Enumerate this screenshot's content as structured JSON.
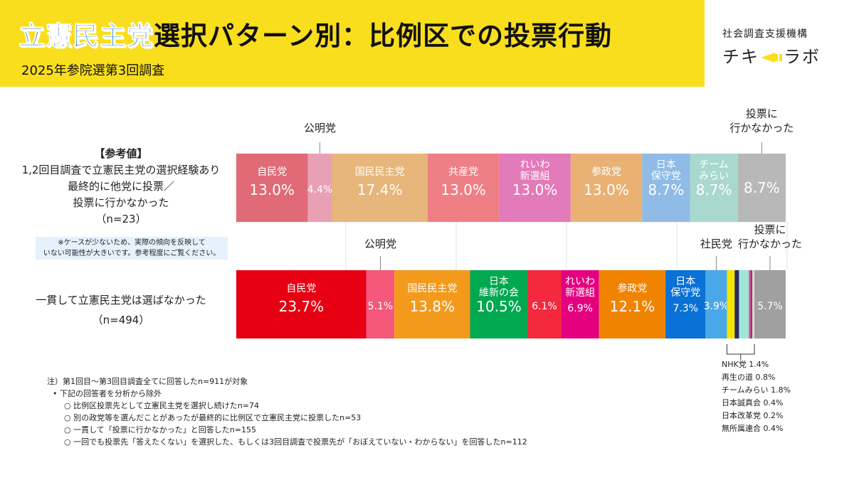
{
  "header": {
    "title_highlight": "立憲民主党",
    "title_rest": "選択パターン別：比例区での投票行動",
    "subtitle": "2025年参院選第3回調査"
  },
  "org": {
    "name": "社会調査支援機構",
    "logo_left": "チキ",
    "logo_right": "ラボ"
  },
  "rows": {
    "row1": {
      "tag": "【参考値】",
      "line1": "1,2回目調査で立憲民主党の選択経験あり",
      "line2": "最終的に他党に投票／",
      "line3": "投票に行かなかった",
      "n": "（n=23）",
      "note_line1": "※ケースが少ないため、実際の傾向を反映して",
      "note_line2": "いない可能性が大きいです。参考程度にご覧ください。"
    },
    "row2": {
      "line1": "一貫して立憲民主党は選ばなかった",
      "n": "（n=494）"
    }
  },
  "chart_data": {
    "type": "bar",
    "orientation": "horizontal-stacked-100",
    "categories": [
      "1,2回目調査で立憲民主党の選択経験あり 最終的に他党に投票／投票に行かなかった",
      "一貫して立憲民主党は選ばなかった"
    ],
    "bars": [
      {
        "segments": [
          {
            "name": "自民党",
            "label": "自民党",
            "value": 13.0,
            "value_label": "13.0%",
            "color": "#e06a76"
          },
          {
            "name": "公明党",
            "label": "",
            "value": 4.4,
            "value_label": "4.4%",
            "color": "#e8a0b4",
            "callout": "公明党"
          },
          {
            "name": "国民民主党",
            "label": "国民民主党",
            "value": 17.4,
            "value_label": "17.4%",
            "color": "#e6b67a"
          },
          {
            "name": "共産党",
            "label": "共産党",
            "value": 13.0,
            "value_label": "13.0%",
            "color": "#ee7f85"
          },
          {
            "name": "れいわ新選組",
            "label": "れいわ\n新選組",
            "value": 13.0,
            "value_label": "13.0%",
            "color": "#e37ab9"
          },
          {
            "name": "参政党",
            "label": "参政党",
            "value": 13.0,
            "value_label": "13.0%",
            "color": "#e9b274"
          },
          {
            "name": "日本保守党",
            "label": "日本\n保守党",
            "value": 8.7,
            "value_label": "8.7%",
            "color": "#8fbbe6"
          },
          {
            "name": "チームみらい",
            "label": "チーム\nみらい",
            "value": 8.7,
            "value_label": "8.7%",
            "color": "#a9d8cf"
          },
          {
            "name": "投票に行かなかった",
            "label": "",
            "value": 8.7,
            "value_label": "8.7%",
            "color": "#b8b8b8",
            "callout": "投票に\n行かなかった"
          }
        ]
      },
      {
        "segments": [
          {
            "name": "自民党",
            "label": "自民党",
            "value": 23.7,
            "value_label": "23.7%",
            "color": "#e60012"
          },
          {
            "name": "公明党",
            "label": "",
            "value": 5.1,
            "value_label": "5.1%",
            "color": "#f5587a",
            "callout": "公明党"
          },
          {
            "name": "国民民主党",
            "label": "国民民主党",
            "value": 13.8,
            "value_label": "13.8%",
            "color": "#f39a1d"
          },
          {
            "name": "日本維新の会",
            "label": "日本\n維新の会",
            "value": 10.5,
            "value_label": "10.5%",
            "color": "#00a84f"
          },
          {
            "name": "共産党",
            "label": "",
            "value": 6.1,
            "value_label": "6.1%",
            "color": "#f4293d"
          },
          {
            "name": "れいわ新選組",
            "label": "れいわ\n新選組",
            "value": 6.9,
            "value_label": "6.9%",
            "color": "#e4007f"
          },
          {
            "name": "参政党",
            "label": "参政党",
            "value": 12.1,
            "value_label": "12.1%",
            "color": "#f08300"
          },
          {
            "name": "日本保守党",
            "label": "日本\n保守党",
            "value": 7.3,
            "value_label": "7.3%",
            "color": "#0a72d6"
          },
          {
            "name": "社民党",
            "label": "",
            "value": 3.9,
            "value_label": "3.9%",
            "color": "#4aa8e8",
            "callout": "社民党"
          },
          {
            "name": "NHK党",
            "label": "",
            "value": 1.4,
            "value_label": "",
            "color": "#f5e400"
          },
          {
            "name": "再生の道",
            "label": "",
            "value": 0.8,
            "value_label": "",
            "color": "#2a2a5e"
          },
          {
            "name": "チームみらい",
            "label": "",
            "value": 1.8,
            "value_label": "",
            "color": "#9fe6d8"
          },
          {
            "name": "日本誠真会",
            "label": "",
            "value": 0.4,
            "value_label": "",
            "color": "#d04c96"
          },
          {
            "name": "日本改革党",
            "label": "",
            "value": 0.2,
            "value_label": "",
            "color": "#7a2a2a"
          },
          {
            "name": "無所属連合",
            "label": "",
            "value": 0.4,
            "value_label": "",
            "color": "#d8d8d8"
          },
          {
            "name": "投票に行かなかった",
            "label": "",
            "value": 5.7,
            "value_label": "5.7%",
            "color": "#a0a0a0",
            "callout": "投票に\n行かなかった"
          }
        ]
      }
    ],
    "small_legend": [
      "NHK党 1.4%",
      "再生の道 0.8%",
      "チームみらい 1.8%",
      "日本誠真会 0.4%",
      "日本改革党 0.2%",
      "無所属連合 0.4%"
    ]
  },
  "notes": {
    "line1": "注）第1回目～第3回目調査全てに回答したn=911が対象",
    "line2": "• 下記の回答者を分析から除外",
    "items": [
      "○ 比例区投票先として立憲民主党を選択し続けたn=74",
      "○ 別の政党等を選んだことがあったが最終的に比例区で立憲民主党に投票したn=53",
      "○ 一貫して「投票に行かなかった」と回答したn=155",
      "○ 一回でも投票先「答えたくない」を選択した、もしくは3回目調査で投票先が「おぼえていない・わからない」を回答したn=112"
    ]
  }
}
